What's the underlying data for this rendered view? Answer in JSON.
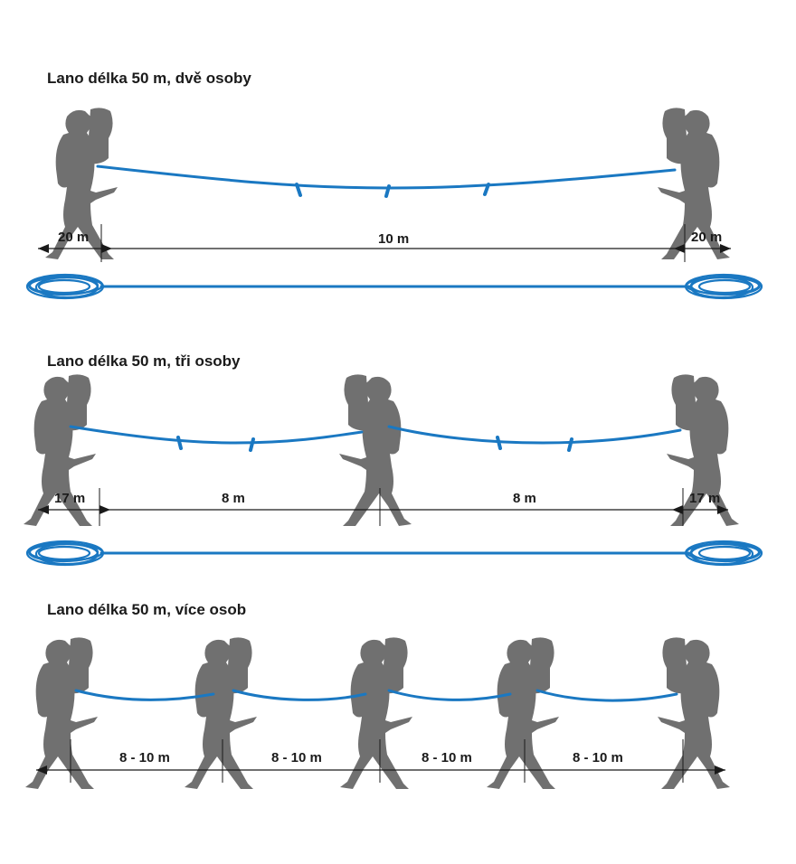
{
  "colors": {
    "rope": "#1a78c2",
    "person": "#707070",
    "text": "#1a1a1a"
  },
  "sections": [
    {
      "title": "Lano délka 50 m, dvě osoby",
      "labels": [
        "20 m",
        "10 m",
        "20 m"
      ]
    },
    {
      "title": "Lano délka 50 m, tři osoby",
      "labels": [
        "17 m",
        "8 m",
        "8 m",
        "17 m"
      ]
    },
    {
      "title": "Lano délka 50 m, více osob",
      "labels": [
        "8 - 10 m",
        "8 - 10 m",
        "8 - 10 m",
        "8 - 10 m"
      ]
    }
  ]
}
